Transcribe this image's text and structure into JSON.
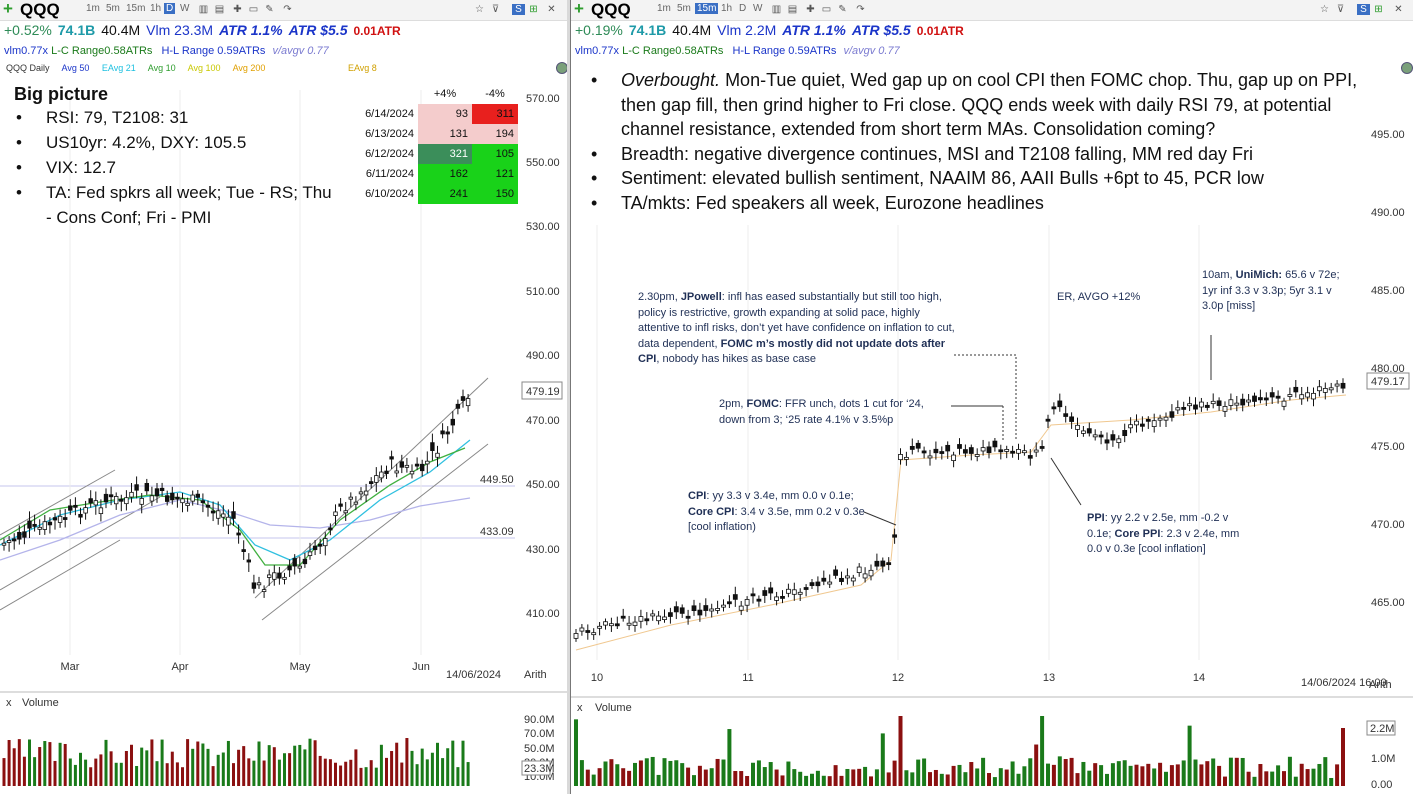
{
  "left": {
    "toolbar": {
      "symbol": "QQQ",
      "timeframes": [
        "1m",
        "5m",
        "15m",
        "1h",
        "D",
        "W"
      ],
      "selected": "D"
    },
    "stats": {
      "change": "+0.52%",
      "mcap": "74.1B",
      "vol": "40.4M",
      "vlm": "Vlm 23.3M",
      "atr_pct": "ATR 1.1%",
      "atr_usd": "ATR $5.5",
      "atr_ratio": "0.01ATR"
    },
    "metrics": {
      "vlm_ratio": "vlm0.77x",
      "lc": "L-C Range0.58ATRs",
      "hl": "H-L Range 0.59ATRs",
      "avgv": "v/avgv 0.77"
    },
    "indicators": [
      "QQQ Daily",
      "Avg 50",
      "EAvg 21",
      "Avg 10",
      "Avg 100",
      "Avg 200",
      "EAvg 8"
    ],
    "big_picture": {
      "title": "Big picture",
      "items": [
        "RSI: 79, T2108: 31",
        "US10yr: 4.2%, DXY: 105.5",
        "VIX: 12.7",
        "TA: Fed spkrs all week; Tue - RS; Thu - Cons Conf; Fri - PMI"
      ]
    },
    "breadth_table": {
      "headers": [
        "+4%",
        "-4%"
      ],
      "rows": [
        {
          "date": "6/14/2024",
          "up": "93",
          "down": "311",
          "up_color": "#f4cccc",
          "down_color": "#e8201e"
        },
        {
          "date": "6/13/2024",
          "up": "131",
          "down": "194",
          "up_color": "#f4cccc",
          "down_color": "#f4cccc"
        },
        {
          "date": "6/12/2024",
          "up": "321",
          "down": "105",
          "up_color": "#3b8e5a",
          "down_color": "#19d219"
        },
        {
          "date": "6/11/2024",
          "up": "162",
          "down": "121",
          "up_color": "#19d219",
          "down_color": "#19d219"
        },
        {
          "date": "6/10/2024",
          "up": "241",
          "down": "150",
          "up_color": "#19d219",
          "down_color": "#19d219"
        }
      ]
    },
    "price_axis": [
      "570.00",
      "550.00",
      "530.00",
      "510.00",
      "490.00",
      "470.00",
      "450.00",
      "430.00",
      "410.00"
    ],
    "price_tag": "479.19",
    "level_tags": [
      "449.50",
      "433.09"
    ],
    "months": [
      "Mar",
      "Apr",
      "May",
      "Jun"
    ],
    "date_stamp": "14/06/2024",
    "scale": "Arith",
    "volume": {
      "label": "Volume",
      "axis": [
        "90.0M",
        "70.0M",
        "50.0M",
        "30.0M",
        "10.0M"
      ],
      "tag": "23.3M"
    }
  },
  "right": {
    "toolbar": {
      "symbol": "QQQ",
      "timeframes": [
        "1m",
        "5m",
        "15m",
        "1h",
        "D",
        "W"
      ],
      "selected": "15m"
    },
    "stats": {
      "change": "+0.19%",
      "mcap": "74.1B",
      "vol": "40.4M",
      "vlm": "Vlm 2.2M",
      "atr_pct": "ATR 1.1%",
      "atr_usd": "ATR $5.5",
      "atr_ratio": "0.01ATR"
    },
    "metrics": {
      "vlm_ratio": "vlm0.77x",
      "lc": "L-C Range0.58ATRs",
      "hl": "H-L Range 0.59ATRs",
      "avgv": "v/avgv 0.77"
    },
    "overview": {
      "lead": "Overbought.",
      "first": " Mon-Tue quiet, Wed gap up on cool CPI then FOMC chop.  Thu, gap up on PPI, then gap fill, then grind higher to Fri close.  QQQ ends week with daily RSI 79, at potential channel resistance, extended from short term MAs.  Consolidation coming?",
      "items": [
        "Breadth: negative divergence continues, MSI and T2108 falling, MM red day Fri",
        "Sentiment: elevated bullish sentiment, NAAIM 86,  AAII Bulls +6pt to 45, PCR low",
        "TA/mkts: Fed speakers all week, Eurozone headlines"
      ]
    },
    "annotations": {
      "jpowell_pre": "2.30pm, ",
      "jpowell_name": "JPowell",
      "jpowell_text": ": infl has eased substantially but still too high, policy is restrictive, growth expanding at solid pace, highly attentive to infl risks, don’t yet have confidence on inflation to cut, data dependent, ",
      "jpowell_bold": "FOMC m’s mostly did not update dots after CPI",
      "jpowell_tail": ", nobody has hikes as base case",
      "fomc_pre": "2pm, ",
      "fomc_name": "FOMC",
      "fomc_text": ": FFR unch, dots 1 cut for ‘24, down from 3; ‘25 rate 4.1% v 3.5%p",
      "er": "ER, AVGO +12%",
      "unimich_pre": "10am, ",
      "unimich_name": "UniMich:",
      "unimich_text": " 65.6 v 72e; 1yr inf 3.3 v 3.3p; 5yr 3.1 v 3.0p [miss]",
      "cpi_name": "CPI",
      "cpi_text1": ": yy 3.3 v 3.4e, mm 0.0 v 0.1e; ",
      "cpi_name2": "Core CPI",
      "cpi_text2": ": 3.4 v 3.5e, mm 0.2 v 0.3e [cool inflation)",
      "ppi_name": "PPI",
      "ppi_text1": ": yy 2.2 v 2.5e, mm -0.2 v 0.1e; ",
      "ppi_name2": "Core PPI",
      "ppi_text2": ": 2.3 v 2.4e, mm 0.0 v 0.3e [cool inflation]"
    },
    "price_axis": [
      "495.00",
      "490.00",
      "485.00",
      "480.00",
      "475.00",
      "470.00",
      "465.00"
    ],
    "price_tag": "479.17",
    "days": [
      "10",
      "11",
      "12",
      "13",
      "14"
    ],
    "date_stamp": "14/06/2024 16:00",
    "scale": "Arith",
    "volume": {
      "label": "Volume",
      "axis": [
        "1.0M",
        "0.00"
      ],
      "tag": "2.2M"
    }
  },
  "colors": {
    "up": "#1a7a1a",
    "down": "#8b1010",
    "accent_blue": "#1b35c9",
    "teal": "#1e9aa8",
    "red": "#d01010",
    "annotation": "#1f2f55"
  }
}
